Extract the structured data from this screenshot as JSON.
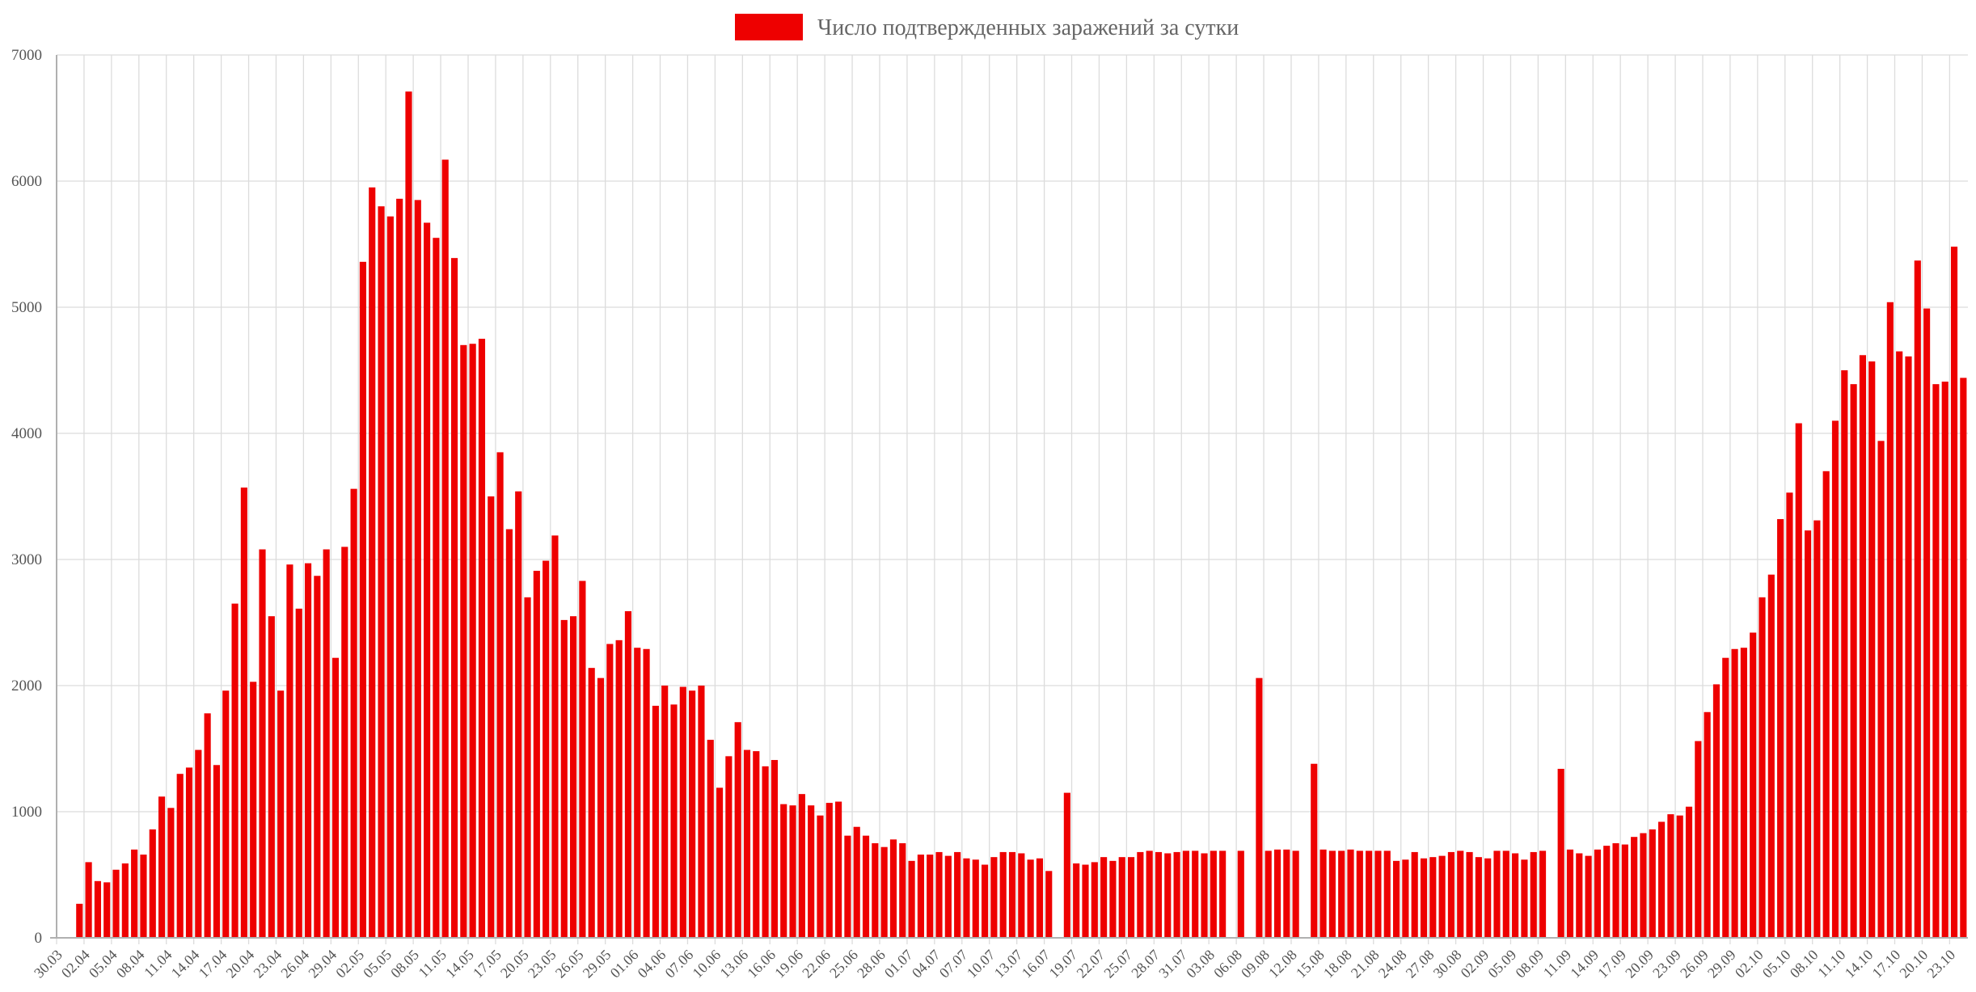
{
  "chart_data": {
    "type": "bar",
    "title": "",
    "xlabel": "",
    "ylabel": "",
    "legend": {
      "position": "top-center",
      "series_label": "Число подтвержденных заражений за сутки"
    },
    "ylim": [
      0,
      7000
    ],
    "yticks": [
      0,
      1000,
      2000,
      3000,
      4000,
      5000,
      6000,
      7000
    ],
    "grid": true,
    "bar_color": "#ee0000",
    "tick_labels": [
      "30.03",
      "02.04",
      "05.04",
      "08.04",
      "11.04",
      "14.04",
      "17.04",
      "20.04",
      "23.04",
      "26.04",
      "29.04",
      "02.05",
      "05.05",
      "08.05",
      "11.05",
      "14.05",
      "17.05",
      "20.05",
      "23.05",
      "26.05",
      "29.05",
      "01.06",
      "04.06",
      "07.06",
      "10.06",
      "13.06",
      "16.06",
      "19.06",
      "22.06",
      "25.06",
      "28.06",
      "01.07",
      "04.07",
      "07.07",
      "10.07",
      "13.07",
      "16.07",
      "19.07",
      "22.07",
      "25.07",
      "28.07",
      "31.07",
      "03.08",
      "06.08",
      "09.08",
      "12.08",
      "15.08",
      "18.08",
      "21.08",
      "24.08",
      "27.08",
      "30.08",
      "02.09",
      "05.09",
      "08.09",
      "11.09",
      "14.09",
      "17.09",
      "20.09",
      "23.09",
      "26.09",
      "29.09",
      "02.10",
      "05.10",
      "08.10",
      "11.10",
      "14.10",
      "17.10",
      "20.10",
      "23.10"
    ],
    "series": [
      {
        "values": [
          0,
          0,
          270,
          600,
          450,
          440,
          540,
          590,
          700,
          660,
          860,
          1120,
          1030,
          1300,
          1350,
          1490,
          1780,
          1370,
          1960,
          2650,
          3570,
          2030,
          3080,
          2550,
          1960,
          2960,
          2610,
          2970,
          2870,
          3080,
          2220,
          3100,
          3560,
          5360,
          5950,
          5800,
          5720,
          5860,
          6710,
          5850,
          5670,
          5550,
          6170,
          5390,
          4700,
          4710,
          4750,
          3500,
          3850,
          3240,
          3540,
          2700,
          2910,
          2990,
          3190,
          2520,
          2550,
          2830,
          2140,
          2060,
          2330,
          2360,
          2590,
          2300,
          2290,
          1840,
          2000,
          1850,
          1990,
          1960,
          2000,
          1570,
          1190,
          1440,
          1710,
          1490,
          1480,
          1360,
          1410,
          1060,
          1050,
          1140,
          1050,
          970,
          1070,
          1080,
          810,
          880,
          810,
          750,
          720,
          780,
          750,
          610,
          660,
          660,
          680,
          650,
          680,
          630,
          620,
          580,
          640,
          680,
          680,
          670,
          620,
          630,
          530,
          0,
          1150,
          590,
          580,
          600,
          640,
          610,
          640,
          640,
          680,
          690,
          680,
          670,
          680,
          690,
          690,
          670,
          690,
          690,
          0,
          690,
          0,
          2060,
          690,
          700,
          700,
          690,
          0,
          1380,
          700,
          690,
          690,
          700,
          690,
          690,
          690,
          690,
          610,
          620,
          680,
          630,
          640,
          650,
          680,
          690,
          680,
          640,
          630,
          690,
          690,
          670,
          620,
          680,
          690,
          0,
          1340,
          700,
          670,
          650,
          700,
          730,
          750,
          740,
          800,
          830,
          860,
          920,
          980,
          970,
          1040,
          1560,
          1790,
          2010,
          2220,
          2290,
          2300,
          2420,
          2700,
          2880,
          3320,
          3530,
          4080,
          3230,
          3310,
          3700,
          4100,
          4500,
          4390,
          4620,
          4570,
          3940,
          5040,
          4650,
          4610,
          5370,
          4990,
          4390,
          4410,
          5480,
          4440
        ]
      }
    ]
  }
}
